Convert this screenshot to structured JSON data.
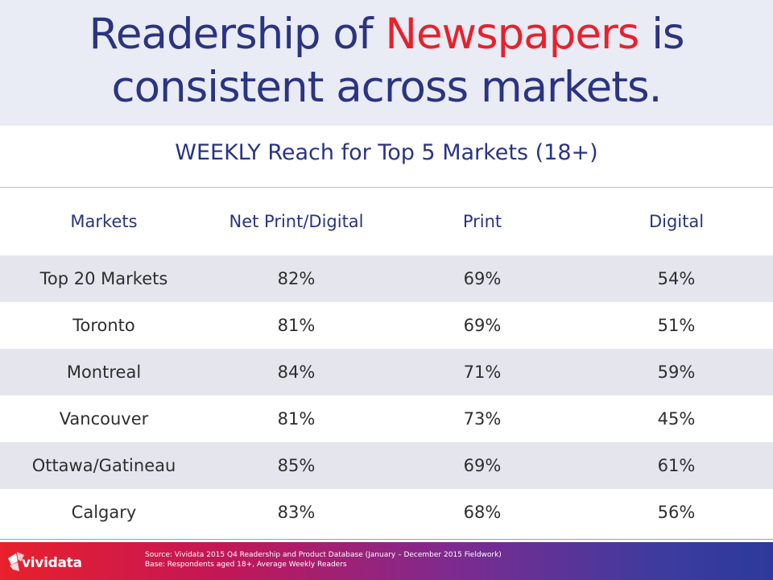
{
  "title": {
    "part1": "Readership of ",
    "highlight": "Newspapers",
    "part2": " is",
    "line2": "consistent across markets."
  },
  "subtitle": "WEEKLY Reach for Top 5 Markets (18+)",
  "table": {
    "headers": [
      "Markets",
      "Net Print/Digital",
      "Print",
      "Digital"
    ],
    "rows": [
      [
        "Top 20 Markets",
        "82%",
        "69%",
        "54%"
      ],
      [
        "Toronto",
        "81%",
        "69%",
        "51%"
      ],
      [
        "Montreal",
        "84%",
        "71%",
        "59%"
      ],
      [
        "Vancouver",
        "81%",
        "73%",
        "45%"
      ],
      [
        "Ottawa/Gatineau",
        "85%",
        "69%",
        "61%"
      ],
      [
        "Calgary",
        "83%",
        "68%",
        "56%"
      ]
    ]
  },
  "footer": {
    "logo_text": "vividata",
    "logo_icon": "vividata-logo-icon",
    "source": "Source: Vividata 2015 Q4 Readership and Product Database (January – December 2015 Fieldwork)",
    "base": "Base: Respondents aged 18+, Average Weekly Readers"
  },
  "colors": {
    "title": "#2a3480",
    "highlight": "#e8212b",
    "row_band": "#e5e5ee",
    "title_band": "#e9ebf5"
  }
}
